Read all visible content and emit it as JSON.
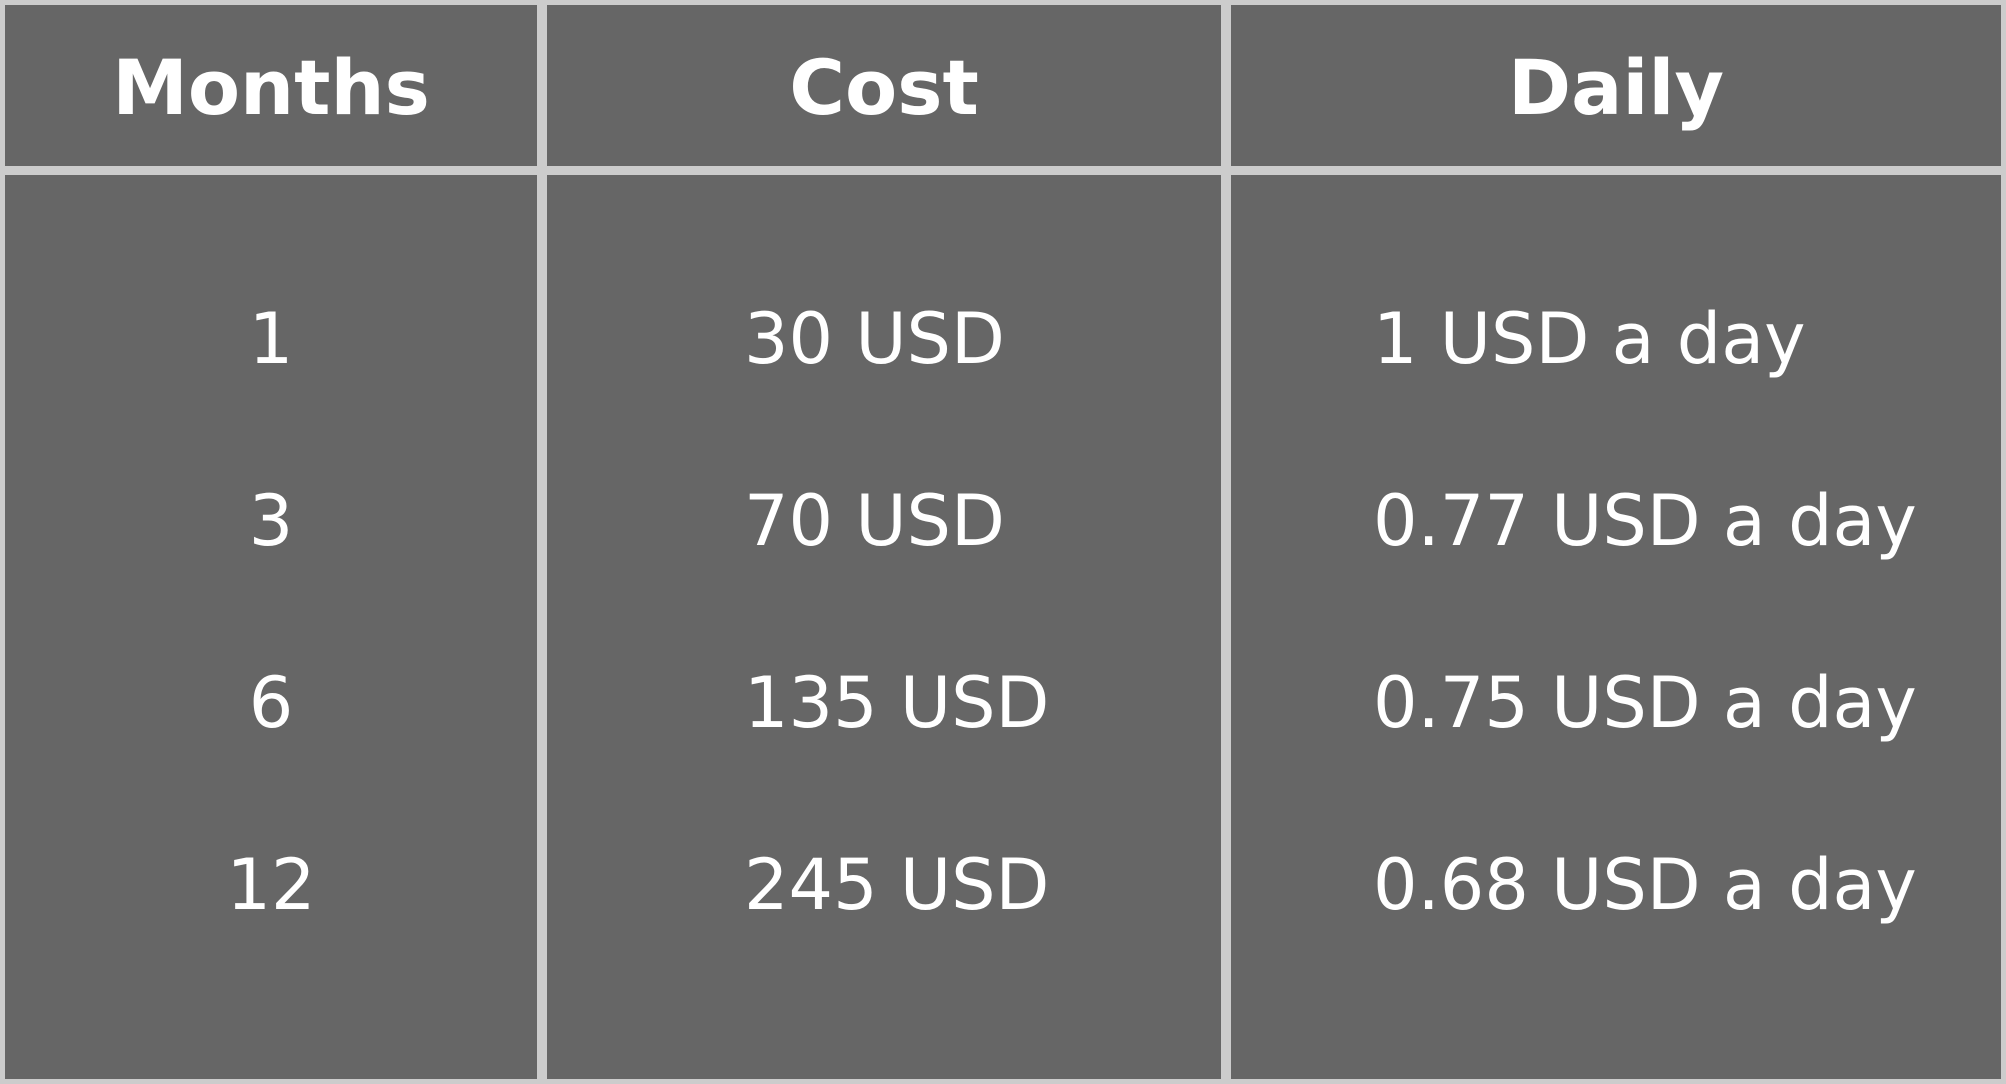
{
  "table": {
    "headers": [
      "Months",
      "Cost",
      "Daily"
    ],
    "rows": [
      {
        "months": "1",
        "cost": "30 USD",
        "daily": "1 USD a day"
      },
      {
        "months": "3",
        "cost": "70 USD",
        "daily": "0.77 USD a day"
      },
      {
        "months": "6",
        "cost": "135 USD",
        "daily": "0.75 USD a day"
      },
      {
        "months": "12",
        "cost": "245 USD",
        "daily": "0.68 USD a day"
      }
    ],
    "colors": {
      "background": "#666666",
      "grid": "#cccccc",
      "text": "#ffffff"
    }
  }
}
